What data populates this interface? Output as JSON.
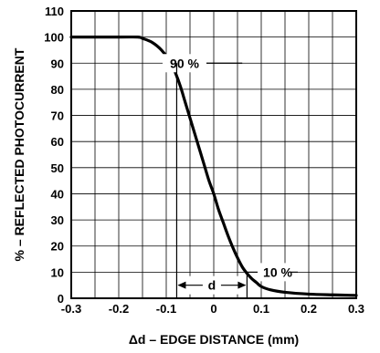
{
  "chart_data": {
    "type": "line",
    "title": "",
    "xlabel": "Δd – EDGE DISTANCE (mm)",
    "ylabel": "% – REFLECTED PHOTOCURRENT",
    "xlim": [
      -0.3,
      0.3
    ],
    "ylim": [
      0,
      110
    ],
    "x_ticks": [
      "-0.3",
      "-0.2",
      "-0.1",
      "0",
      "0.1",
      "0.2",
      "0.3"
    ],
    "y_ticks": [
      "0",
      "10",
      "20",
      "30",
      "40",
      "50",
      "60",
      "70",
      "80",
      "90",
      "100",
      "110"
    ],
    "grid": true,
    "legend": "none",
    "series": [
      {
        "x": [
          -0.3,
          -0.2,
          -0.16,
          -0.15,
          -0.13,
          -0.11,
          -0.09,
          -0.08,
          -0.07,
          -0.06,
          -0.05,
          -0.04,
          -0.03,
          -0.02,
          -0.01,
          0,
          0.01,
          0.02,
          0.03,
          0.04,
          0.05,
          0.06,
          0.07,
          0.08,
          0.09,
          0.1,
          0.12,
          0.15,
          0.2,
          0.25,
          0.3
        ],
        "y": [
          100,
          100,
          100,
          99.5,
          98,
          95,
          90,
          86,
          81,
          75,
          69,
          63,
          57,
          51,
          45,
          40,
          34,
          29,
          24,
          19.5,
          15.5,
          12,
          9.5,
          7.5,
          6,
          4.5,
          3.2,
          2.3,
          1.6,
          1.3,
          1.1
        ]
      }
    ],
    "annotations": [
      {
        "text": "90 %",
        "x": -0.05,
        "y": 90
      },
      {
        "text": "10 %",
        "x": 0.1,
        "y": 10
      },
      {
        "text": "d",
        "x": 0.0,
        "y": 5
      }
    ]
  }
}
